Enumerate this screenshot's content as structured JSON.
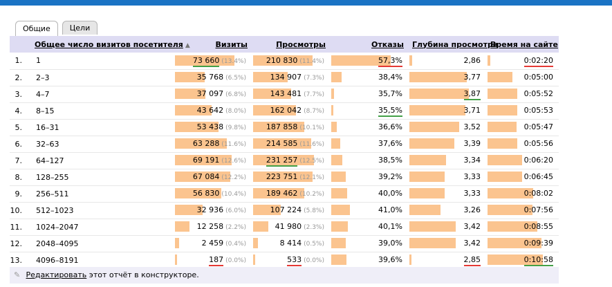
{
  "tabs": [
    {
      "label": "Общие",
      "active": true
    },
    {
      "label": "Цели",
      "active": false
    }
  ],
  "columns": {
    "category": "Общее число визитов посетителя",
    "visits": "Визиты",
    "views": "Просмотры",
    "bounces": "Отказы",
    "depth": "Глубина просмотра",
    "time": "Время на сайте"
  },
  "sort_indicator": "▲",
  "colors": {
    "accent_bar": "#1a73c4",
    "header_bg": "#dedcf3",
    "data_bar": "#fbc48f",
    "highlight_max": "#e53935",
    "highlight_min": "#43a047"
  },
  "rows": [
    {
      "idx": "1.",
      "category": "1",
      "visits": "73 660",
      "visits_pct": "(13.4%)",
      "visits_bar": 0.82,
      "visits_hl": "green",
      "views": "210 830",
      "views_pct": "(11.4%)",
      "views_bar": 0.82,
      "views_hl": "",
      "bounces": "57,3%",
      "bounces_bar": 0.82,
      "bounces_hl": "red",
      "depth": "2,86",
      "depth_bar": 0.04,
      "depth_hl": "",
      "time": "0:02:20",
      "time_bar": 0.04,
      "time_hl": "red"
    },
    {
      "idx": "2.",
      "category": "2–3",
      "visits": "35 768",
      "visits_pct": "(6.5%)",
      "visits_bar": 0.41,
      "visits_hl": "",
      "views": "134 907",
      "views_pct": "(7.3%)",
      "views_bar": 0.48,
      "views_hl": "",
      "bounces": "38,4%",
      "bounces_bar": 0.14,
      "bounces_hl": "",
      "depth": "3,77",
      "depth_bar": 0.79,
      "depth_hl": "",
      "time": "0:05:00",
      "time_bar": 0.37,
      "time_hl": ""
    },
    {
      "idx": "3.",
      "category": "4–7",
      "visits": "37 097",
      "visits_pct": "(6.8%)",
      "visits_bar": 0.42,
      "visits_hl": "",
      "views": "143 481",
      "views_pct": "(7.7%)",
      "views_bar": 0.52,
      "views_hl": "",
      "bounces": "35,7%",
      "bounces_bar": 0.04,
      "bounces_hl": "",
      "depth": "3,87",
      "depth_bar": 0.82,
      "depth_hl": "green",
      "time": "0:05:52",
      "time_bar": 0.44,
      "time_hl": ""
    },
    {
      "idx": "4.",
      "category": "8–15",
      "visits": "43 642",
      "visits_pct": "(8.0%)",
      "visits_bar": 0.5,
      "visits_hl": "",
      "views": "162 042",
      "views_pct": "(8.7%)",
      "views_bar": 0.59,
      "views_hl": "",
      "bounces": "35,5%",
      "bounces_bar": 0.03,
      "bounces_hl": "green",
      "depth": "3,71",
      "depth_bar": 0.77,
      "depth_hl": "",
      "time": "0:05:53",
      "time_bar": 0.44,
      "time_hl": ""
    },
    {
      "idx": "5.",
      "category": "16–31",
      "visits": "53 438",
      "visits_pct": "(9.8%)",
      "visits_bar": 0.6,
      "visits_hl": "",
      "views": "187 858",
      "views_pct": "(10.1%)",
      "views_bar": 0.7,
      "views_hl": "",
      "bounces": "36,6%",
      "bounces_bar": 0.08,
      "bounces_hl": "",
      "depth": "3,52",
      "depth_bar": 0.69,
      "depth_hl": "",
      "time": "0:05:47",
      "time_bar": 0.43,
      "time_hl": ""
    },
    {
      "idx": "6.",
      "category": "32–63",
      "visits": "63 288",
      "visits_pct": "(11.6%)",
      "visits_bar": 0.71,
      "visits_hl": "",
      "views": "214 585",
      "views_pct": "(11.6%)",
      "views_bar": 0.8,
      "views_hl": "",
      "bounces": "37,6%",
      "bounces_bar": 0.12,
      "bounces_hl": "",
      "depth": "3,39",
      "depth_bar": 0.62,
      "depth_hl": "",
      "time": "0:05:56",
      "time_bar": 0.44,
      "time_hl": ""
    },
    {
      "idx": "7.",
      "category": "64–127",
      "visits": "69 191",
      "visits_pct": "(12.6%)",
      "visits_bar": 0.78,
      "visits_hl": "",
      "views": "231 257",
      "views_pct": "(12.5%)",
      "views_bar": 0.84,
      "views_hl": "green",
      "bounces": "38,5%",
      "bounces_bar": 0.15,
      "bounces_hl": "",
      "depth": "3,34",
      "depth_bar": 0.5,
      "depth_hl": "",
      "time": "0:06:20",
      "time_bar": 0.52,
      "time_hl": ""
    },
    {
      "idx": "8.",
      "category": "128–255",
      "visits": "67 084",
      "visits_pct": "(12.2%)",
      "visits_bar": 0.76,
      "visits_hl": "",
      "views": "223 751",
      "views_pct": "(12.1%)",
      "views_bar": 0.82,
      "views_hl": "",
      "bounces": "39,2%",
      "bounces_bar": 0.2,
      "bounces_hl": "",
      "depth": "3,33",
      "depth_bar": 0.49,
      "depth_hl": "",
      "time": "0:06:45",
      "time_bar": 0.52,
      "time_hl": ""
    },
    {
      "idx": "9.",
      "category": "256–511",
      "visits": "56 830",
      "visits_pct": "(10.4%)",
      "visits_bar": 0.64,
      "visits_hl": "",
      "views": "189 462",
      "views_pct": "(10.2%)",
      "views_bar": 0.7,
      "views_hl": "",
      "bounces": "40,0%",
      "bounces_bar": 0.22,
      "bounces_hl": "",
      "depth": "3,33",
      "depth_bar": 0.49,
      "depth_hl": "",
      "time": "0:08:02",
      "time_bar": 0.68,
      "time_hl": ""
    },
    {
      "idx": "10.",
      "category": "512–1023",
      "visits": "32 936",
      "visits_pct": "(6.0%)",
      "visits_bar": 0.38,
      "visits_hl": "",
      "views": "107 224",
      "views_pct": "(5.8%)",
      "views_bar": 0.38,
      "views_hl": "",
      "bounces": "41,0%",
      "bounces_bar": 0.26,
      "bounces_hl": "",
      "depth": "3,26",
      "depth_bar": 0.43,
      "depth_hl": "",
      "time": "0:07:56",
      "time_bar": 0.67,
      "time_hl": ""
    },
    {
      "idx": "11.",
      "category": "1024–2047",
      "visits": "12 258",
      "visits_pct": "(2.2%)",
      "visits_bar": 0.2,
      "visits_hl": "",
      "views": "41 980",
      "views_pct": "(2.3%)",
      "views_bar": 0.21,
      "views_hl": "",
      "bounces": "40,1%",
      "bounces_bar": 0.23,
      "bounces_hl": "",
      "depth": "3,42",
      "depth_bar": 0.64,
      "depth_hl": "",
      "time": "0:08:55",
      "time_bar": 0.74,
      "time_hl": ""
    },
    {
      "idx": "12.",
      "category": "2048–4095",
      "visits": "2 459",
      "visits_pct": "(0.4%)",
      "visits_bar": 0.06,
      "visits_hl": "",
      "views": "8 414",
      "views_pct": "(0.5%)",
      "views_bar": 0.07,
      "views_hl": "",
      "bounces": "39,0%",
      "bounces_bar": 0.2,
      "bounces_hl": "",
      "depth": "3,42",
      "depth_bar": 0.64,
      "depth_hl": "",
      "time": "0:09:39",
      "time_bar": 0.8,
      "time_hl": ""
    },
    {
      "idx": "13.",
      "category": "4096–8191",
      "visits": "187",
      "visits_pct": "(0.0%)",
      "visits_bar": 0.03,
      "visits_hl": "red",
      "views": "533",
      "views_pct": "(0.0%)",
      "views_bar": 0.03,
      "views_hl": "red",
      "bounces": "39,6%",
      "bounces_bar": 0.21,
      "bounces_hl": "",
      "depth": "2,85",
      "depth_bar": 0.03,
      "depth_hl": "red",
      "time": "0:10:58",
      "time_bar": 0.82,
      "time_hl": "green"
    }
  ],
  "footer": {
    "icon": "pencil-icon",
    "link": "Редактировать",
    "text": "этот отчёт в конструкторе."
  }
}
